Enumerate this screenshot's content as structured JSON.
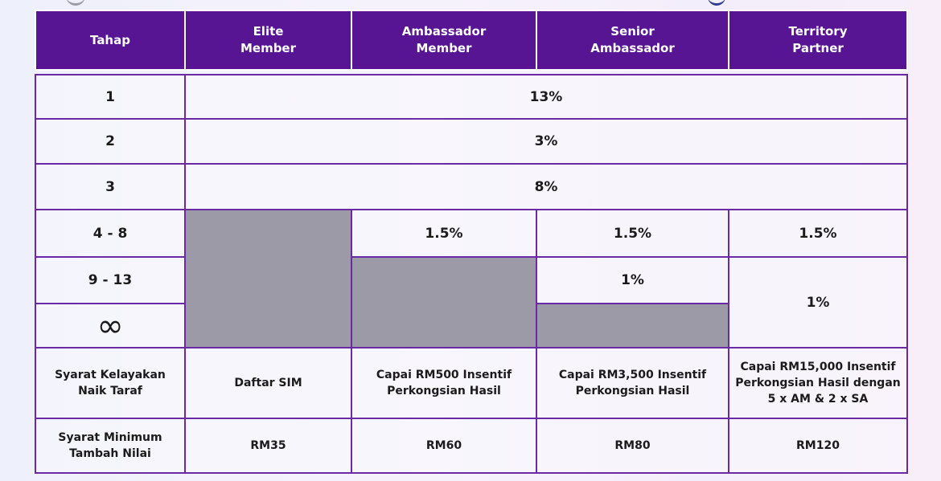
{
  "header": {
    "tahap": "Tahap",
    "elite_member": "Elite\nMember",
    "ambassador_member": "Ambassador\nMember",
    "senior_ambassador": "Senior\nAmbassador",
    "territory_partner": "Territory\nPartner"
  },
  "rows": {
    "level1": {
      "label": "1",
      "value": "13%"
    },
    "level2": {
      "label": "2",
      "value": "3%"
    },
    "level3": {
      "label": "3",
      "value": "8%"
    },
    "level4_8": {
      "label": "4  - 8",
      "ambassador": "1.5%",
      "senior": "1.5%",
      "territory": "1.5%"
    },
    "level9_13": {
      "label": "9 - 13",
      "senior": "1%",
      "territory": "1%"
    },
    "level_infinity": {
      "label": "∞"
    }
  },
  "eligibility": {
    "label": "Syarat Kelayakan Naik Taraf",
    "elite": "Daftar SIM",
    "ambassador": "Capai RM500 Insentif Perkongsian Hasil",
    "senior": "Capai RM3,500 Insentif Perkongsian Hasil",
    "territory": "Capai RM15,000 Insentif Perkongsian Hasil dengan 5 x AM & 2 x SA"
  },
  "minimum_topup": {
    "label": "Syarat Minimum Tambah Nilai",
    "elite": "RM35",
    "ambassador": "RM60",
    "senior": "RM80",
    "territory": "RM120"
  }
}
